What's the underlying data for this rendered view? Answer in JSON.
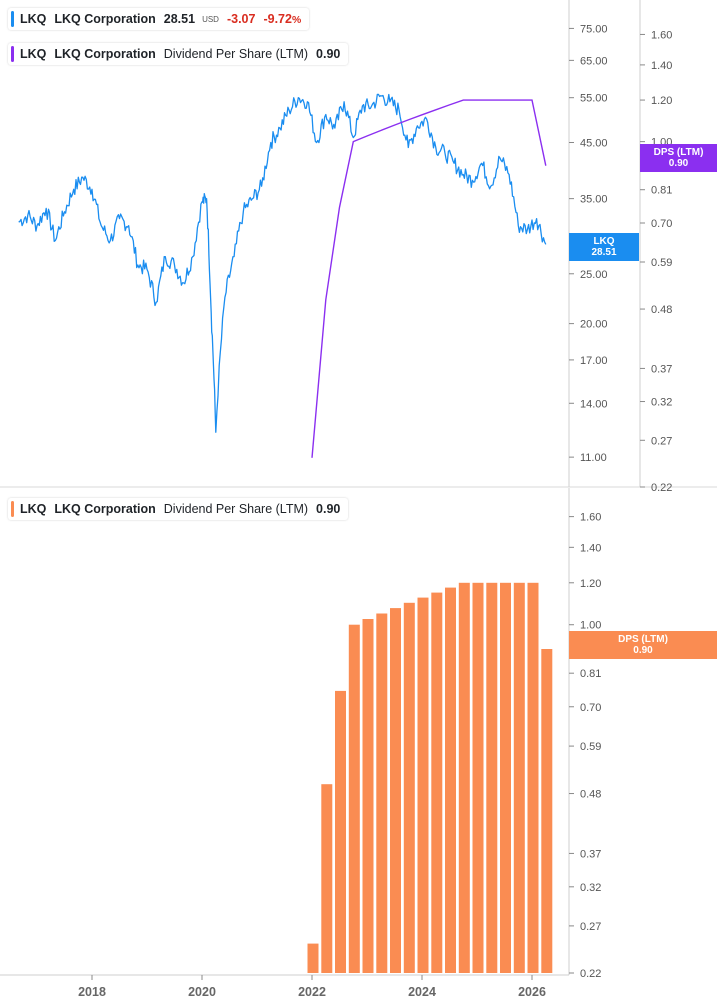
{
  "colors": {
    "price_line": "#1a8df0",
    "dps_line": "#8b2ff0",
    "dps_bar": "#fa8c52",
    "negative": "#d92d20",
    "axis": "#555555"
  },
  "legends": {
    "price": {
      "ticker": "LKQ",
      "company": "LKQ Corporation",
      "price": "28.51",
      "currency": "USD",
      "change": "-3.07",
      "change_pct": "-9.72",
      "pct_symbol": "%"
    },
    "dps_overlay": {
      "ticker": "LKQ",
      "company": "LKQ Corporation",
      "metric": "Dividend Per Share (LTM)",
      "value": "0.90"
    },
    "dps_bars": {
      "ticker": "LKQ",
      "company": "LKQ Corporation",
      "metric": "Dividend Per Share (LTM)",
      "value": "0.90"
    }
  },
  "flags": {
    "price": {
      "label": "LKQ",
      "value": "28.51"
    },
    "dps_top": {
      "label": "DPS (LTM)",
      "value": "0.90"
    },
    "dps_bottom": {
      "label": "DPS (LTM)",
      "value": "0.90"
    }
  },
  "chart_data": [
    {
      "type": "line",
      "scale": "log",
      "x_axis": {
        "labels": [
          "2018",
          "2020",
          "2022",
          "2024",
          "2026"
        ]
      },
      "y_axis_price": {
        "ticks": [
          "11.00",
          "14.00",
          "17.00",
          "20.00",
          "25.00",
          "35.00",
          "45.00",
          "55.00",
          "65.00",
          "75.00"
        ],
        "range": [
          10.2,
          80
        ]
      },
      "y_axis_dps": {
        "ticks": [
          "0.22",
          "0.27",
          "0.32",
          "0.37",
          "0.48",
          "0.59",
          "0.70",
          "0.81",
          "1.00",
          "1.20",
          "1.40",
          "1.60"
        ],
        "range": [
          0.22,
          1.75
        ]
      },
      "series": [
        {
          "name": "LKQ",
          "axis": "price",
          "x": [
            "2016-09",
            "2016-11",
            "2017-01",
            "2017-03",
            "2017-05",
            "2017-07",
            "2017-09",
            "2017-11",
            "2018-01",
            "2018-03",
            "2018-05",
            "2018-07",
            "2018-09",
            "2018-11",
            "2019-01",
            "2019-03",
            "2019-05",
            "2019-07",
            "2019-09",
            "2019-11",
            "2020-01",
            "2020-02",
            "2020-03",
            "2020-04",
            "2020-06",
            "2020-08",
            "2020-10",
            "2020-12",
            "2021-02",
            "2021-04",
            "2021-06",
            "2021-08",
            "2021-10",
            "2021-12",
            "2022-02",
            "2022-04",
            "2022-06",
            "2022-08",
            "2022-10",
            "2022-12",
            "2023-02",
            "2023-04",
            "2023-06",
            "2023-08",
            "2023-10",
            "2023-12",
            "2024-02",
            "2024-04",
            "2024-06",
            "2024-08",
            "2024-10",
            "2024-12",
            "2025-02",
            "2025-04",
            "2025-06",
            "2025-08",
            "2025-10",
            "2025-12",
            "2026-02",
            "2026-04"
          ],
          "y": [
            31.5,
            32.5,
            31.0,
            33.5,
            29.0,
            33.0,
            36.5,
            38.5,
            36.5,
            31.0,
            29.0,
            32.0,
            31.0,
            26.0,
            25.5,
            22.0,
            27.0,
            26.0,
            24.0,
            27.0,
            34.5,
            35.0,
            21.0,
            12.3,
            22.5,
            27.0,
            33.0,
            35.0,
            37.0,
            45.0,
            48.0,
            52.0,
            55.0,
            54.0,
            45.0,
            51.0,
            48.0,
            54.0,
            46.0,
            53.0,
            53.0,
            55.5,
            54.0,
            52.0,
            44.0,
            48.5,
            50.0,
            44.0,
            43.0,
            41.0,
            39.0,
            38.0,
            41.0,
            37.0,
            42.0,
            39.0,
            31.0,
            30.5,
            32.0,
            28.51
          ]
        },
        {
          "name": "DPS (LTM)",
          "axis": "dps",
          "x": [
            "2022-01",
            "2022-04",
            "2022-07",
            "2022-10",
            "2023-01",
            "2023-04",
            "2023-07",
            "2023-10",
            "2024-01",
            "2024-04",
            "2024-07",
            "2024-10",
            "2025-01",
            "2025-04",
            "2025-07",
            "2025-10",
            "2026-01",
            "2026-04"
          ],
          "y": [
            0.25,
            0.5,
            0.75,
            1.0,
            1.025,
            1.05,
            1.075,
            1.1,
            1.125,
            1.15,
            1.175,
            1.2,
            1.2,
            1.2,
            1.2,
            1.2,
            1.2,
            0.9
          ]
        }
      ]
    },
    {
      "type": "bar",
      "scale": "log",
      "x_axis": {
        "labels": [
          "2018",
          "2020",
          "2022",
          "2024",
          "2026"
        ]
      },
      "y_axis": {
        "ticks": [
          "0.22",
          "0.27",
          "0.32",
          "0.37",
          "0.48",
          "0.59",
          "0.70",
          "0.81",
          "1.00",
          "1.20",
          "1.40",
          "1.60"
        ],
        "range": [
          0.22,
          1.75
        ]
      },
      "series": [
        {
          "name": "Dividend Per Share (LTM)",
          "x": [
            "2022-01",
            "2022-04",
            "2022-07",
            "2022-10",
            "2023-01",
            "2023-04",
            "2023-07",
            "2023-10",
            "2024-01",
            "2024-04",
            "2024-07",
            "2024-10",
            "2025-01",
            "2025-04",
            "2025-07",
            "2025-10",
            "2026-01",
            "2026-04"
          ],
          "values": [
            0.25,
            0.5,
            0.75,
            1.0,
            1.025,
            1.05,
            1.075,
            1.1,
            1.125,
            1.15,
            1.175,
            1.2,
            1.2,
            1.2,
            1.2,
            1.2,
            1.2,
            0.9
          ]
        }
      ]
    }
  ]
}
